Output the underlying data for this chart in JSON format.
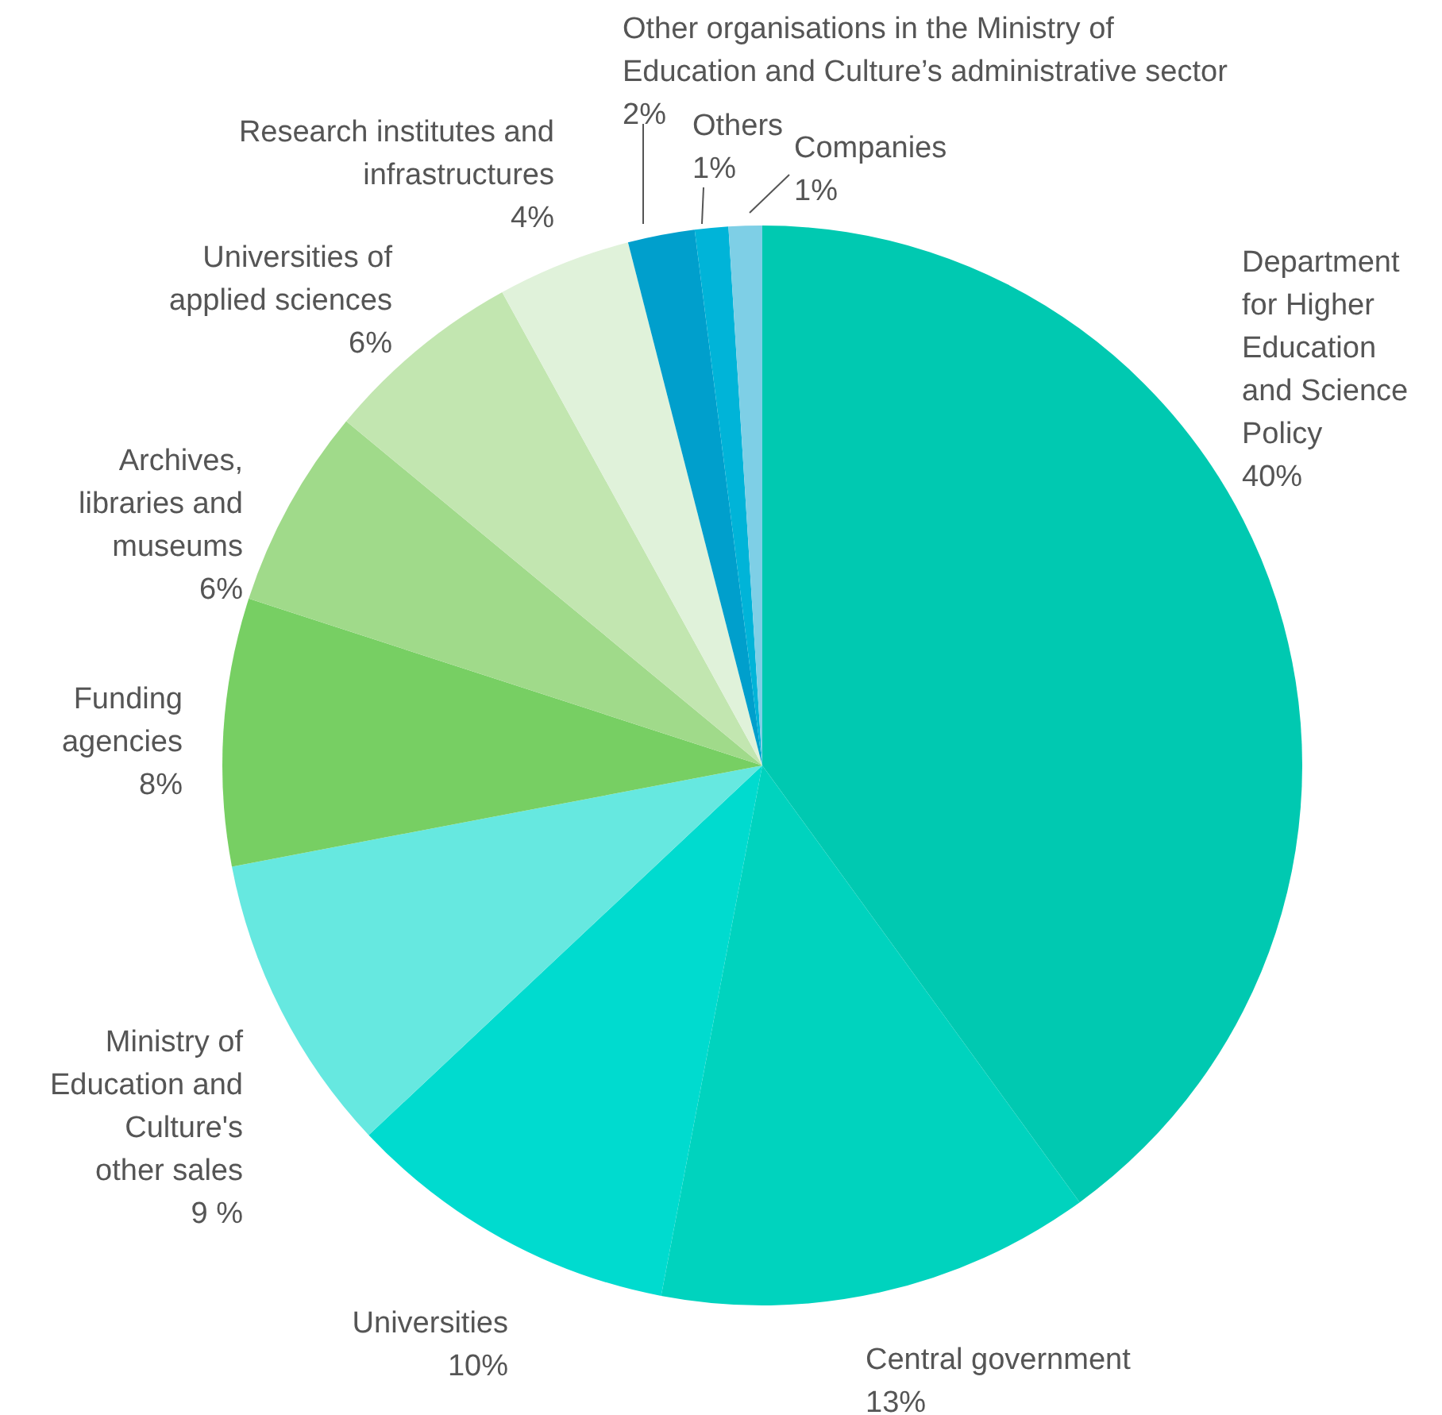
{
  "chart_data": {
    "type": "pie",
    "categories": [
      "Department\nfor Higher\nEducation\nand Science\nPolicy",
      "Central government",
      "Universities",
      "Ministry of\nEducation and\nCulture's\nother sales",
      "Funding\nagencies",
      "Archives,\nlibraries and\nmuseums",
      "Universities of\napplied sciences",
      "Research institutes and\ninfrastructures",
      "Other organisations in the Ministry of\nEducation and Culture’s administrative sector",
      "Others",
      "Companies"
    ],
    "values": [
      40,
      13,
      10,
      9,
      8,
      6,
      6,
      4,
      2,
      1,
      1
    ],
    "value_labels": [
      "40%",
      "13%",
      "10%",
      "9 %",
      "8%",
      "6%",
      "6%",
      "4%",
      "2%",
      "1%",
      "1%"
    ],
    "colors": [
      "#00c9b1",
      "#00d3be",
      "#00dbcf",
      "#66e8e0",
      "#77cf63",
      "#a0da8a",
      "#c2e6b0",
      "#e0f2da",
      "#009fcc",
      "#00b4d8",
      "#7ecfe6"
    ],
    "legend": false
  }
}
